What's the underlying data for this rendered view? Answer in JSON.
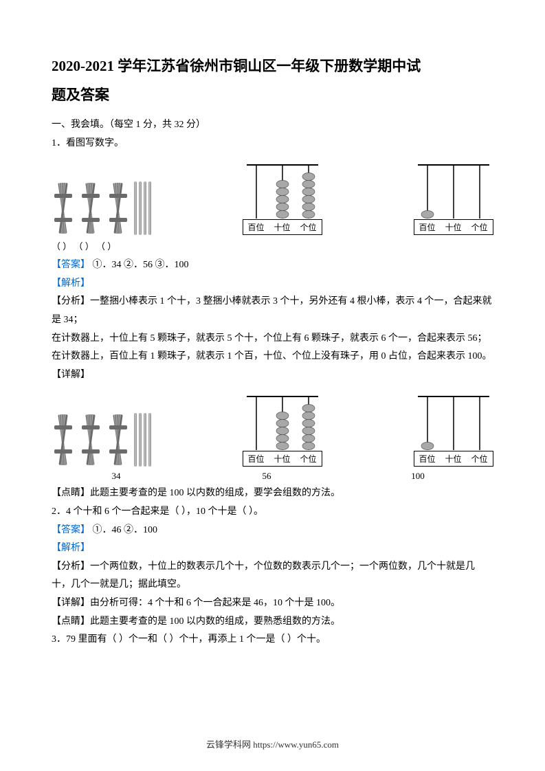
{
  "title_line1": "2020-2021 学年江苏省徐州市铜山区一年级下册数学期中试",
  "title_line2": "题及答案",
  "section1": "一、我会填。（每空 1 分，共 32 分）",
  "q1": {
    "prompt": "1．看图写数字。",
    "fig1": {
      "bundles": 3,
      "loose": 4,
      "color_dark": "#6b6b6b",
      "color_light": "#b0b0b0"
    },
    "abacus1": {
      "rods": [
        {
          "label": "百位",
          "beads": 0
        },
        {
          "label": "十位",
          "beads": 5
        },
        {
          "label": "个位",
          "beads": 6
        }
      ],
      "bead_color": "#a8a8a8"
    },
    "abacus2": {
      "rods": [
        {
          "label": "百位",
          "beads": 1
        },
        {
          "label": "十位",
          "beads": 0
        },
        {
          "label": "个位",
          "beads": 0
        }
      ],
      "bead_color": "#a8a8a8"
    },
    "blanks": "（        ）    （        ）    （        ）",
    "answer_label": "【答案】",
    "answer_text": "    ①．34    ②．56    ③．100",
    "parse_label": "【解析】",
    "analysis_label": "【分析】",
    "analysis1": "一整捆小棒表示 1 个十，3 整捆小棒就表示 3 个十，另外还有 4 根小棒，表示 4 个一，合起来就是 34；",
    "analysis2": "在计数器上，十位上有 5 颗珠子，就表示 5 个十，个位上有 6 颗珠子，就表示 6 个一，合起来表示 56；",
    "analysis3": "在计数器上，百位上有 1 颗珠子，就表示 1 个百，十位、个位上没有珠子，用 0 占位，合起来表示 100。",
    "detail_label": "【详解】",
    "caption1": "34",
    "caption2": "56",
    "caption3": "100",
    "point_label": "【点睛】",
    "point": "此题主要考查的是 100 以内数的组成，要学会组数的方法。"
  },
  "q2": {
    "prompt": "2．4 个十和 6 个一合起来是（        ），10 个十是（        ）。",
    "answer_label": "【答案】",
    "answer_text": "    ①．46    ②．100",
    "parse_label": "【解析】",
    "analysis_label": "【分析】",
    "analysis": "一个两位数，十位上的数表示几个十，个位数的数表示几个一；一个两位数，几个十就是几十，几个一就是几；据此填空。",
    "detail_label": "【详解】",
    "detail": "由分析可得：4 个十和 6 个一合起来是 46，10 个十是 100。",
    "point_label": "【点睛】",
    "point": "此题主要考查的是 100 以内数的组成，要熟悉组数的方法。"
  },
  "q3": {
    "prompt": "3．79 里面有（        ）个一和（        ）个十，再添上 1 个一是（        ）个十。"
  },
  "footer": "云锋学科网 https://www.yun65.com"
}
